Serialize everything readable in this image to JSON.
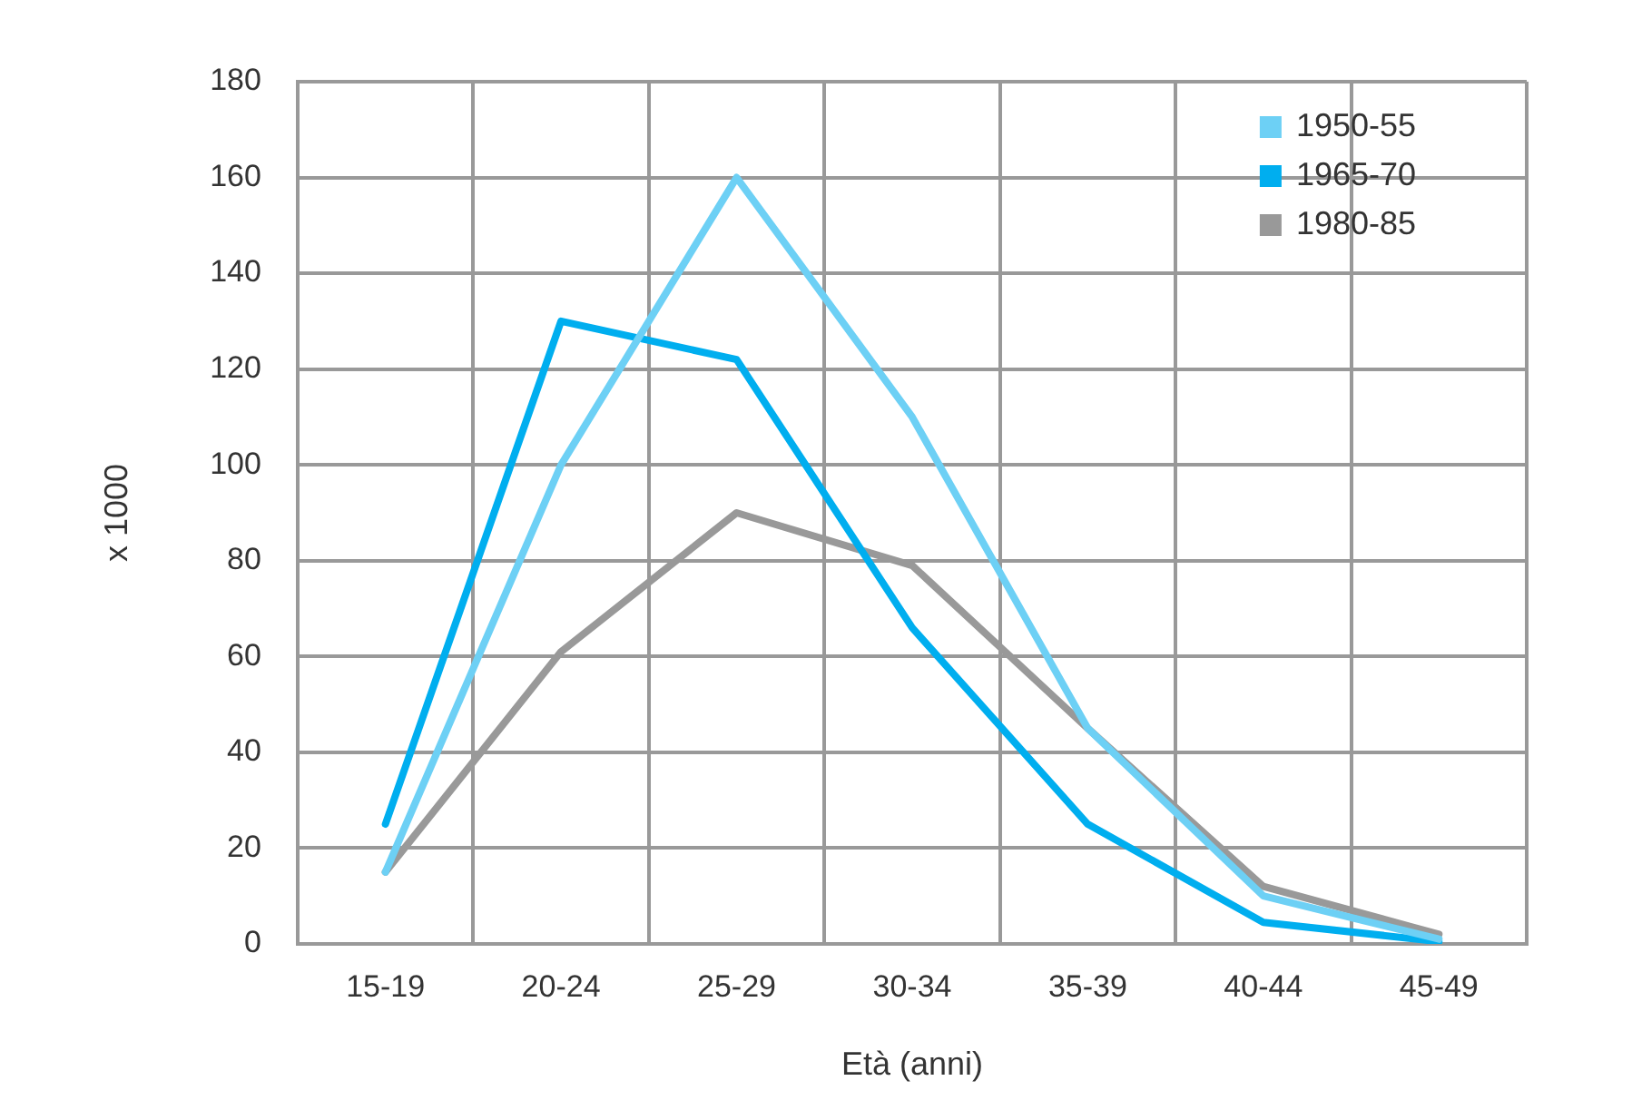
{
  "chart_data": {
    "type": "line",
    "xlabel": "Età (anni)",
    "ylabel": "x 1000",
    "categories": [
      "15-19",
      "20-24",
      "25-29",
      "30-34",
      "35-39",
      "40-44",
      "45-49"
    ],
    "series": [
      {
        "name": "1950-55",
        "color": "#6dd0f5",
        "values": [
          15,
          100,
          160,
          110,
          45,
          10,
          1
        ]
      },
      {
        "name": "1965-70",
        "color": "#00aeef",
        "values": [
          25,
          130,
          122,
          66,
          25,
          4.5,
          0.5
        ]
      },
      {
        "name": "1980-85",
        "color": "#999999",
        "values": [
          15,
          61,
          90,
          79,
          45,
          12,
          2
        ]
      }
    ],
    "ylim": [
      0,
      180
    ],
    "yticks": [
      0,
      20,
      40,
      60,
      80,
      100,
      120,
      140,
      160,
      180
    ],
    "grid": true,
    "legend": "top right",
    "marker": "none",
    "line_style": "solid"
  }
}
